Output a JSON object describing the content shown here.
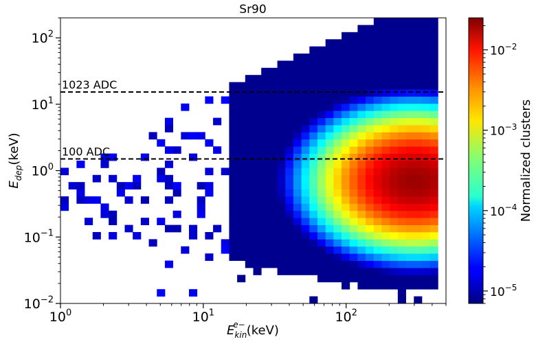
{
  "chart_data": {
    "type": "heatmap",
    "title": "Sr90",
    "xlabel": {
      "base": "E",
      "sub": "kin",
      "sup": "e−",
      "unit": "(keV)"
    },
    "ylabel": {
      "base": "E",
      "sub": "dep",
      "unit": "(keV)"
    },
    "x_scale": "log",
    "y_scale": "log",
    "xlim": [
      1,
      500
    ],
    "ylim": [
      0.01,
      200
    ],
    "grid": false,
    "x_ticks": [
      {
        "value": 1,
        "base": "10",
        "exp": "0"
      },
      {
        "value": 10,
        "base": "10",
        "exp": "1"
      },
      {
        "value": 100,
        "base": "10",
        "exp": "2"
      }
    ],
    "y_ticks": [
      {
        "value": 0.01,
        "base": "10",
        "exp": "−2"
      },
      {
        "value": 0.1,
        "base": "10",
        "exp": "−1"
      },
      {
        "value": 1,
        "base": "10",
        "exp": "0"
      },
      {
        "value": 10,
        "base": "10",
        "exp": "1"
      },
      {
        "value": 100,
        "base": "10",
        "exp": "2"
      }
    ],
    "reference_lines": [
      {
        "label": "1023 ADC",
        "y": 15.3,
        "style": "dashed"
      },
      {
        "label": "100 ADC",
        "y": 1.5,
        "style": "dashed"
      }
    ],
    "colorbar": {
      "label": "Normalized clusters",
      "scale": "log",
      "range": [
        7e-06,
        0.025
      ],
      "colormap": "jet",
      "ticks": [
        {
          "value": 1e-05,
          "base": "10",
          "exp": "−5"
        },
        {
          "value": 0.0001,
          "base": "10",
          "exp": "−4"
        },
        {
          "value": 0.001,
          "base": "10",
          "exp": "−3"
        },
        {
          "value": 0.01,
          "base": "10",
          "exp": "−2"
        }
      ]
    },
    "bins": {
      "x_log_range": [
        0,
        2.6989
      ],
      "y_log_range": [
        -2,
        2.301
      ],
      "nx": 48,
      "ny": 40
    },
    "distribution_note": "density peaks near Ekin≈300 keV, Edep≈0.7 keV"
  }
}
